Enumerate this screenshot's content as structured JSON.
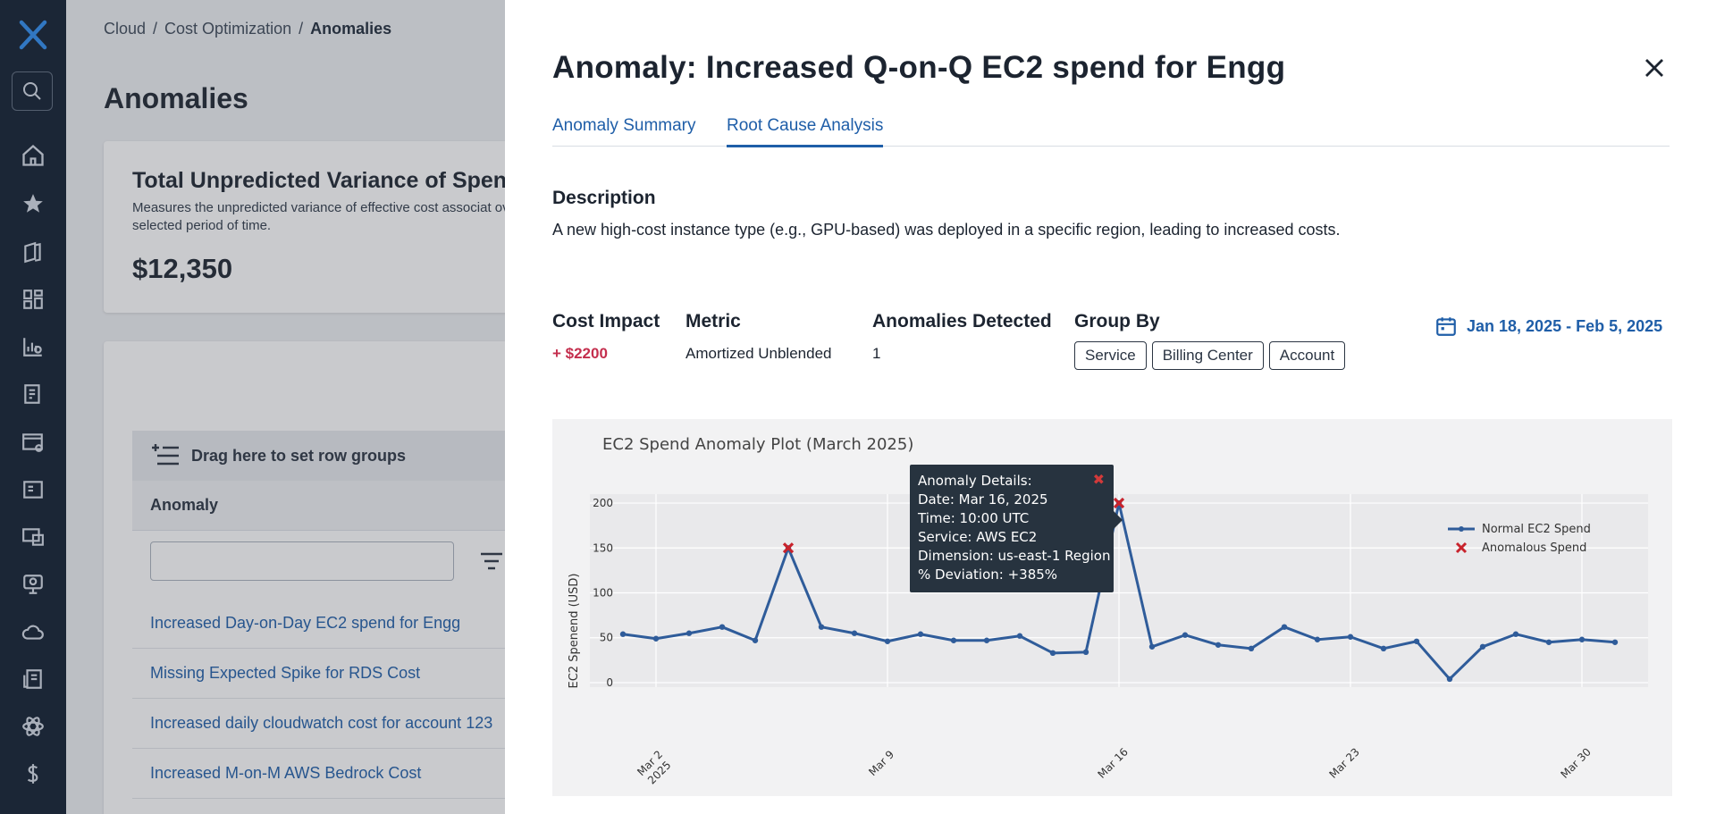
{
  "breadcrumb": {
    "items": [
      "Cloud",
      "Cost Optimization"
    ],
    "current": "Anomalies",
    "sep": "/"
  },
  "page": {
    "title": "Anomalies",
    "variance_card": {
      "title": "Total Unpredicted Variance of Spend",
      "description": "Measures the unpredicted variance of effective cost associat over selected period of time.",
      "amount": "$12,350"
    },
    "grid": {
      "group_bar_label": "Drag here to set row groups",
      "column_header": "Anomaly",
      "rows": [
        "Increased Day-on-Day EC2 spend for Engg",
        "Missing Expected Spike for RDS Cost",
        "Increased daily cloudwatch cost for account 123",
        "Increased M-on-M AWS Bedrock Cost"
      ]
    }
  },
  "drawer": {
    "title": "Anomaly: Increased Q-on-Q EC2 spend for Engg",
    "tabs": [
      {
        "label": "Anomaly Summary",
        "active": false
      },
      {
        "label": "Root Cause Analysis",
        "active": true
      }
    ],
    "description_label": "Description",
    "description": "A new high-cost instance type (e.g., GPU-based) was deployed in a specific region, leading to increased costs.",
    "cost_impact": {
      "label": "Cost Impact",
      "value": "+ $2200"
    },
    "metric": {
      "label": "Metric",
      "value": "Amortized Unblended"
    },
    "anomalies_detected": {
      "label": "Anomalies Detected",
      "value": "1"
    },
    "group_by": {
      "label": "Group By",
      "chips": [
        "Service",
        "Billing Center",
        "Account"
      ]
    },
    "date_range": "Jan 18, 2025 - Feb 5, 2025",
    "tooltip": {
      "close": "✖",
      "lines": [
        "Anomaly Details:",
        "Date: Mar 16, 2025",
        "Time: 10:00 UTC",
        "Service: AWS EC2",
        "Dimension: us-east-1 Region",
        "% Deviation: +385%"
      ]
    }
  },
  "colors": {
    "accent": "#1f5ea8",
    "impact": "#c42e4d",
    "series": "#2f5c9a",
    "anomaly": "#c8232c",
    "rail": "#0f1c2e"
  },
  "chart_data": {
    "type": "line",
    "title": "EC2 Spend Anomaly Plot (March 2025)",
    "xlabel": "",
    "ylabel": "EC2 Spenend (USD)",
    "ylim": [
      -5,
      210
    ],
    "yticks": [
      0,
      50,
      100,
      150,
      200
    ],
    "xticks": [
      {
        "day": 2,
        "label": [
          "Mar 2",
          "2025"
        ]
      },
      {
        "day": 9,
        "label": [
          "Mar 9"
        ]
      },
      {
        "day": 16,
        "label": [
          "Mar 16"
        ]
      },
      {
        "day": 23,
        "label": [
          "Mar 23"
        ]
      },
      {
        "day": 30,
        "label": [
          "Mar 30"
        ]
      }
    ],
    "x_days": [
      1,
      2,
      3,
      4,
      5,
      6,
      7,
      8,
      9,
      10,
      11,
      12,
      13,
      14,
      15,
      16,
      17,
      18,
      19,
      20,
      21,
      22,
      23,
      24,
      25,
      26,
      27,
      28,
      29,
      30,
      31
    ],
    "series": [
      {
        "name": "Normal EC2 Spend",
        "values": [
          54,
          49,
          55,
          62,
          47,
          150,
          62,
          55,
          46,
          54,
          47,
          47,
          52,
          33,
          34,
          200,
          40,
          53,
          42,
          38,
          62,
          48,
          51,
          38,
          46,
          4,
          40,
          54,
          45,
          48,
          45
        ]
      },
      {
        "name": "Anomalous Spend",
        "points": [
          {
            "day": 6,
            "value": 150
          },
          {
            "day": 16,
            "value": 200
          }
        ]
      }
    ],
    "legend": "top-right",
    "grid": true
  }
}
